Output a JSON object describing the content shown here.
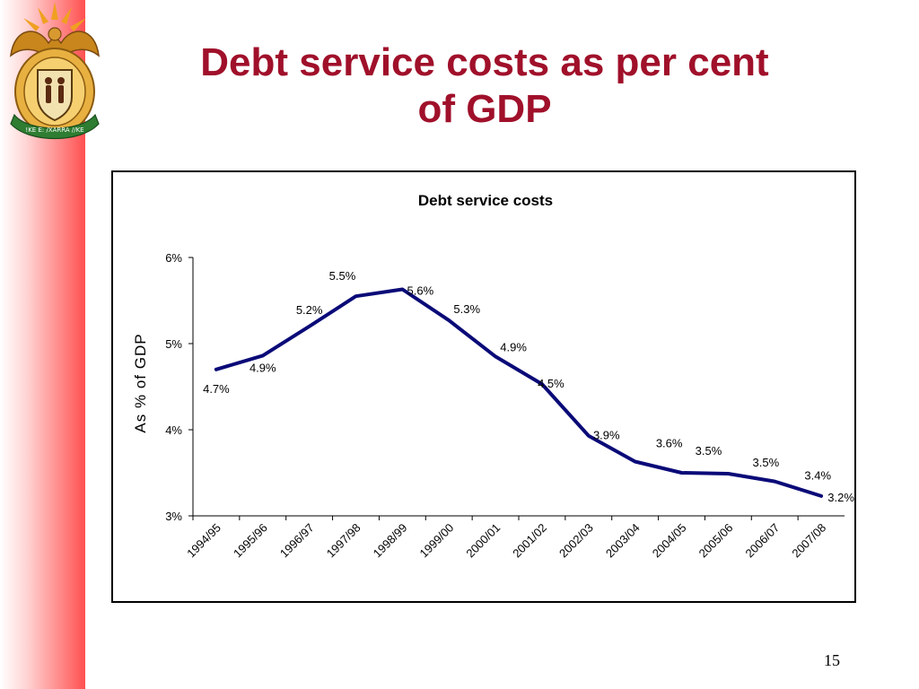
{
  "slide": {
    "title_line1": "Debt service costs as per cent",
    "title_line2": "of GDP",
    "page_number": "15",
    "title_color": "#a0102a",
    "crest_motto": "!KE E: /XARRA //KE"
  },
  "chart_data": {
    "type": "line",
    "title": "Debt service costs",
    "ylabel": "As % of GDP",
    "xlabel": "",
    "ylim": [
      3,
      6
    ],
    "yticks": [
      3,
      4,
      5,
      6
    ],
    "ytick_labels": [
      "3%",
      "4%",
      "5%",
      "6%"
    ],
    "categories": [
      "1994/95",
      "1995/96",
      "1996/97",
      "1997/98",
      "1998/99",
      "1999/00",
      "2000/01",
      "2001/02",
      "2002/03",
      "2003/04",
      "2004/05",
      "2005/06",
      "2006/07",
      "2007/08"
    ],
    "values": [
      4.7,
      4.86,
      5.2,
      5.55,
      5.63,
      5.27,
      4.85,
      4.53,
      3.93,
      3.63,
      3.5,
      3.49,
      3.4,
      3.23
    ],
    "value_labels": [
      "4.7%",
      "4.9%",
      "5.2%",
      "5.5%",
      "5.6%",
      "5.3%",
      "4.9%",
      "4.5%",
      "3.9%",
      "3.6%",
      "3.5%",
      "3.5%",
      "3.4%",
      "3.2%"
    ],
    "line_color": "#0a0a78",
    "grid": false,
    "legend": "none"
  }
}
